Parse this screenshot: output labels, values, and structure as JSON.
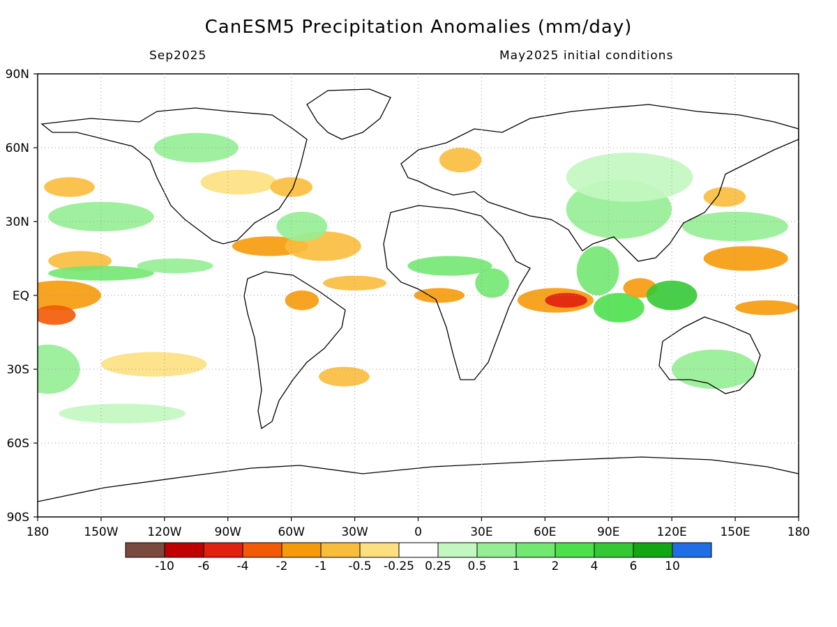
{
  "title": "CanESM5 Precipitation Anomalies (mm/day)",
  "subtitle_left": "Sep2025",
  "subtitle_right": "May2025 initial conditions",
  "lat_labels": [
    "90N",
    "60N",
    "30N",
    "EQ",
    "30S",
    "60S",
    "90S"
  ],
  "lon_labels": [
    "180",
    "150W",
    "120W",
    "90W",
    "60W",
    "30W",
    "0",
    "30E",
    "60E",
    "90E",
    "120E",
    "150E",
    "180"
  ],
  "colorbar": {
    "colors": [
      "#7a4a3e",
      "#c00000",
      "#e02010",
      "#f25a05",
      "#f59a0a",
      "#f9bd3c",
      "#fce080",
      "#ffffff",
      "#c2f7c0",
      "#95ee93",
      "#72e772",
      "#4ce04c",
      "#34c934",
      "#13a613",
      "#1f6ee5"
    ],
    "tick_labels": [
      "-10",
      "-6",
      "-4",
      "-2",
      "-1",
      "-0.5",
      "-0.25",
      "0.25",
      "0.5",
      "1",
      "2",
      "4",
      "6",
      "10"
    ]
  },
  "anomaly_regions": [
    {
      "lon": -170,
      "lat": 0,
      "rx": 20,
      "ry": 6,
      "color": "#f59a0a"
    },
    {
      "lon": -172,
      "lat": -8,
      "rx": 10,
      "ry": 4,
      "color": "#f25a05"
    },
    {
      "lon": -160,
      "lat": 14,
      "rx": 15,
      "ry": 4,
      "color": "#f9bd3c"
    },
    {
      "lon": -150,
      "lat": 9,
      "rx": 25,
      "ry": 3,
      "color": "#72e772"
    },
    {
      "lon": -115,
      "lat": 12,
      "rx": 18,
      "ry": 3,
      "color": "#95ee93"
    },
    {
      "lon": -150,
      "lat": 32,
      "rx": 25,
      "ry": 6,
      "color": "#95ee93"
    },
    {
      "lon": -165,
      "lat": 44,
      "rx": 12,
      "ry": 4,
      "color": "#f9bd3c"
    },
    {
      "lon": -85,
      "lat": 46,
      "rx": 18,
      "ry": 5,
      "color": "#fce080"
    },
    {
      "lon": -60,
      "lat": 44,
      "rx": 10,
      "ry": 4,
      "color": "#f9bd3c"
    },
    {
      "lon": -70,
      "lat": 20,
      "rx": 18,
      "ry": 4,
      "color": "#f59a0a"
    },
    {
      "lon": -45,
      "lat": 20,
      "rx": 18,
      "ry": 6,
      "color": "#f9bd3c"
    },
    {
      "lon": -30,
      "lat": 5,
      "rx": 15,
      "ry": 3,
      "color": "#f9bd3c"
    },
    {
      "lon": -55,
      "lat": -2,
      "rx": 8,
      "ry": 4,
      "color": "#f59a0a"
    },
    {
      "lon": -55,
      "lat": 28,
      "rx": 12,
      "ry": 6,
      "color": "#95ee93"
    },
    {
      "lon": -105,
      "lat": 60,
      "rx": 20,
      "ry": 6,
      "color": "#95ee93"
    },
    {
      "lon": 15,
      "lat": 12,
      "rx": 20,
      "ry": 4,
      "color": "#72e772"
    },
    {
      "lon": 10,
      "lat": 0,
      "rx": 12,
      "ry": 3,
      "color": "#f59a0a"
    },
    {
      "lon": 35,
      "lat": 5,
      "rx": 8,
      "ry": 6,
      "color": "#72e772"
    },
    {
      "lon": 65,
      "lat": -2,
      "rx": 18,
      "ry": 5,
      "color": "#f59a0a"
    },
    {
      "lon": 70,
      "lat": -2,
      "rx": 10,
      "ry": 3,
      "color": "#e02010"
    },
    {
      "lon": 85,
      "lat": 10,
      "rx": 10,
      "ry": 10,
      "color": "#72e772"
    },
    {
      "lon": 95,
      "lat": -5,
      "rx": 12,
      "ry": 6,
      "color": "#4ce04c"
    },
    {
      "lon": 105,
      "lat": 3,
      "rx": 8,
      "ry": 4,
      "color": "#f59a0a"
    },
    {
      "lon": 120,
      "lat": 0,
      "rx": 12,
      "ry": 6,
      "color": "#34c934"
    },
    {
      "lon": 95,
      "lat": 35,
      "rx": 25,
      "ry": 12,
      "color": "#95ee93"
    },
    {
      "lon": 100,
      "lat": 48,
      "rx": 30,
      "ry": 10,
      "color": "#c2f7c0"
    },
    {
      "lon": 155,
      "lat": 15,
      "rx": 20,
      "ry": 5,
      "color": "#f59a0a"
    },
    {
      "lon": 165,
      "lat": -5,
      "rx": 15,
      "ry": 3,
      "color": "#f59a0a"
    },
    {
      "lon": 145,
      "lat": 40,
      "rx": 10,
      "ry": 4,
      "color": "#f9bd3c"
    },
    {
      "lon": 150,
      "lat": 28,
      "rx": 25,
      "ry": 6,
      "color": "#95ee93"
    },
    {
      "lon": 140,
      "lat": -30,
      "rx": 20,
      "ry": 8,
      "color": "#95ee93"
    },
    {
      "lon": -175,
      "lat": -30,
      "rx": 15,
      "ry": 10,
      "color": "#95ee93"
    },
    {
      "lon": -125,
      "lat": -28,
      "rx": 25,
      "ry": 5,
      "color": "#fce080"
    },
    {
      "lon": -140,
      "lat": -48,
      "rx": 30,
      "ry": 4,
      "color": "#c2f7c0"
    },
    {
      "lon": -35,
      "lat": -33,
      "rx": 12,
      "ry": 4,
      "color": "#f9bd3c"
    },
    {
      "lon": 20,
      "lat": 55,
      "rx": 10,
      "ry": 5,
      "color": "#f9bd3c"
    }
  ]
}
